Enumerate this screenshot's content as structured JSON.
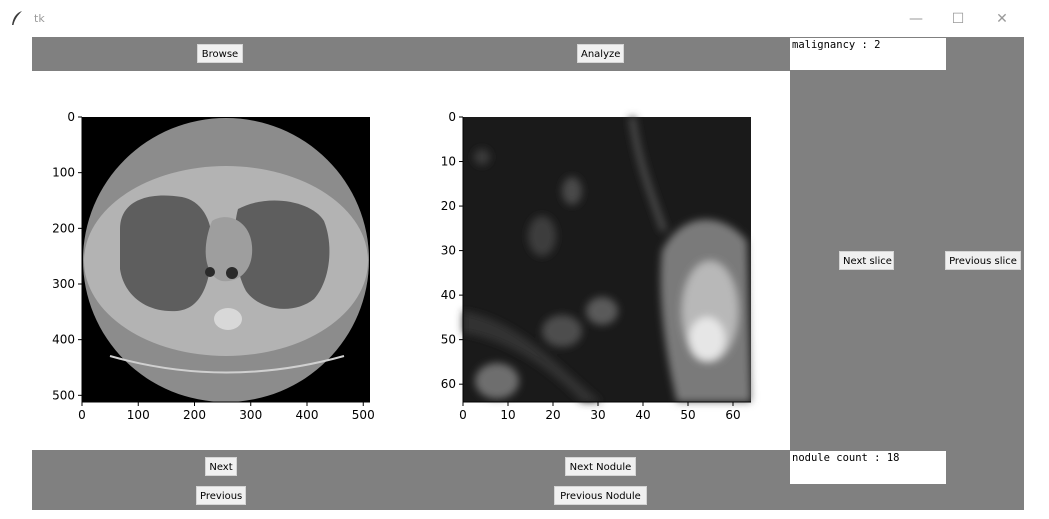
{
  "window": {
    "title": "tk",
    "controls": {
      "minimize": "—",
      "maximize": "☐",
      "close": "✕"
    }
  },
  "toolbar": {
    "browse_label": "Browse",
    "analyze_label": "Analyze"
  },
  "side_panel": {
    "malignancy_text": "malignancy : 2",
    "next_slice_label": "Next slice",
    "previous_slice_label": "Previous slice",
    "nodule_count_text": "nodule count : 18"
  },
  "bottom_bar": {
    "next_label": "Next",
    "previous_label": "Previous",
    "next_nodule_label": "Next Nodule",
    "previous_nodule_label": "Previous Nodule"
  },
  "plots": {
    "ct_slice": {
      "xticks": [
        "0",
        "100",
        "200",
        "300",
        "400",
        "500"
      ],
      "yticks": [
        "0",
        "100",
        "200",
        "300",
        "400",
        "500"
      ]
    },
    "nodule_crop": {
      "xticks": [
        "0",
        "10",
        "20",
        "30",
        "40",
        "50",
        "60"
      ],
      "yticks": [
        "0",
        "10",
        "20",
        "30",
        "40",
        "50",
        "60"
      ]
    }
  },
  "colors": {
    "panel_gray": "#808080",
    "button_face": "#f0f0f0",
    "image_bg": "#000000"
  }
}
